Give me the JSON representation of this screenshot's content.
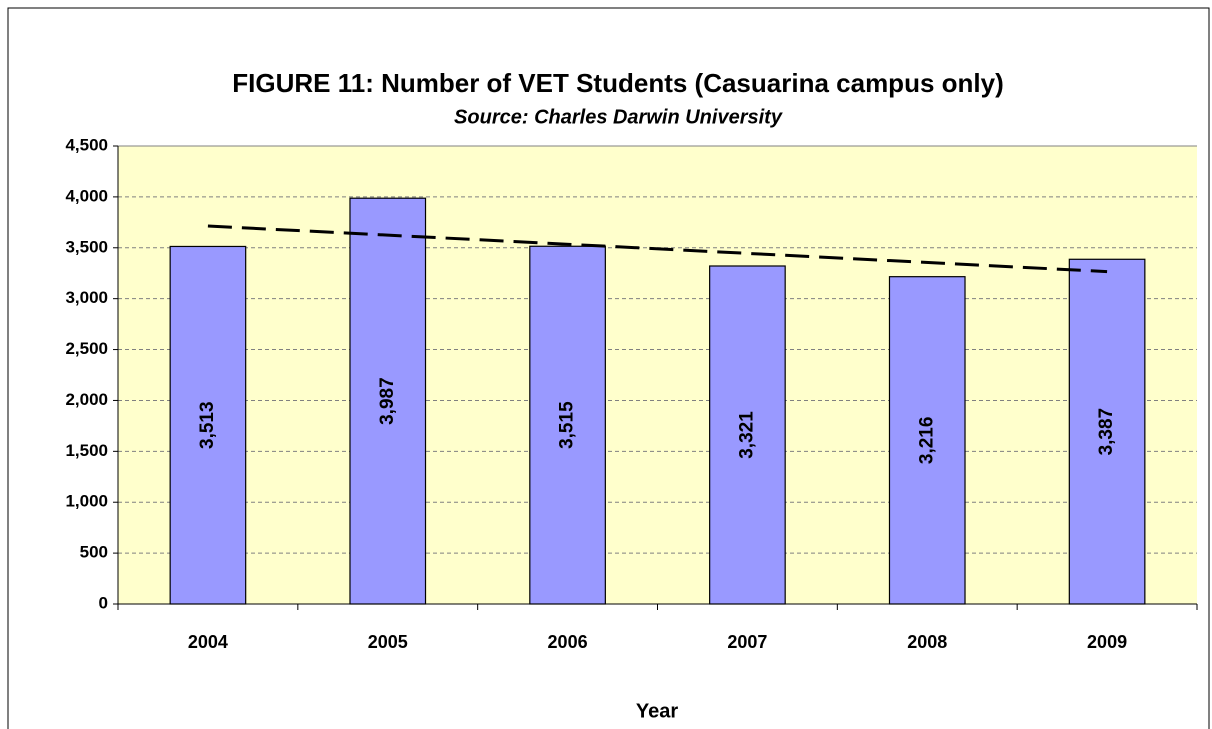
{
  "chart_data": {
    "type": "bar",
    "title": "FIGURE 11: Number of VET Students (Casuarina campus only)",
    "subtitle": "Source: Charles Darwin University",
    "x_label": "Year",
    "categories": [
      "2004",
      "2005",
      "2006",
      "2007",
      "2008",
      "2009"
    ],
    "values": [
      3513,
      3987,
      3515,
      3321,
      3216,
      3387
    ],
    "value_labels": [
      "3,513",
      "3,987",
      "3,515",
      "3,321",
      "3,216",
      "3,387"
    ],
    "color": "#9999ff",
    "plot_background": "#ffffcc",
    "ylim": [
      0,
      4500
    ],
    "yticks": [
      0,
      500,
      {
        "value": 1000,
        "label": "1,000"
      },
      {
        "value": 1500,
        "label": "1,500"
      },
      {
        "value": 2000,
        "label": "2,000"
      },
      {
        "value": 2500,
        "label": "2,500"
      },
      {
        "value": 3000,
        "label": "3,000"
      },
      {
        "value": 3500,
        "label": "3,500"
      },
      {
        "value": 4000,
        "label": "4,000"
      },
      {
        "value": 4500,
        "label": "4,500"
      }
    ],
    "grid": true,
    "trendline": "linear"
  }
}
